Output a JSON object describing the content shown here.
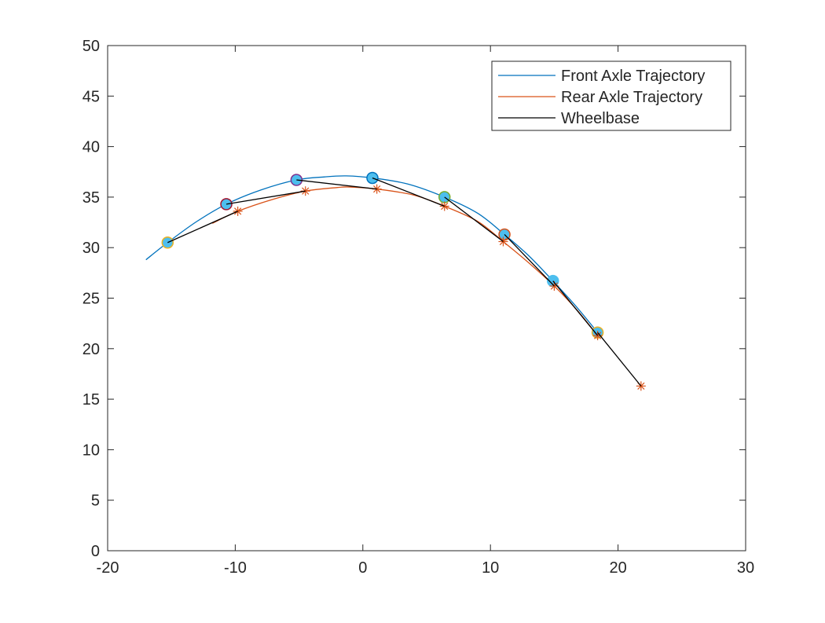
{
  "chart_data": {
    "type": "line",
    "title": "",
    "xlabel": "",
    "ylabel": "",
    "xlim": [
      -20,
      30
    ],
    "ylim": [
      0,
      50
    ],
    "xticks": [
      -20,
      -10,
      0,
      10,
      20,
      30
    ],
    "yticks": [
      0,
      5,
      10,
      15,
      20,
      25,
      30,
      35,
      40,
      45,
      50
    ],
    "grid": false,
    "legend_position": "top-right",
    "series": [
      {
        "name": "Front Axle Trajectory",
        "color": "#0072BD",
        "x": [
          -17,
          -15.3,
          -13,
          -10.7,
          -8,
          -5.2,
          -3,
          -1.3,
          0.75,
          3.5,
          6.4,
          9,
          11.1,
          13,
          14.9,
          16.7,
          18.4
        ],
        "y": [
          28.8,
          30.5,
          32.6,
          34.3,
          35.7,
          36.7,
          37.0,
          37.1,
          36.9,
          36.3,
          35.0,
          33.4,
          31.3,
          29.2,
          26.7,
          24.2,
          21.6
        ]
      },
      {
        "name": "Rear Axle Trajectory",
        "color": "#D95319",
        "x": [
          -11.8,
          -9.8,
          -7,
          -4.5,
          -2,
          -1,
          1.1,
          4,
          6.4,
          9,
          11.0,
          13,
          15.0,
          16.8,
          18.4
        ],
        "y": [
          32.4,
          33.6,
          34.8,
          35.6,
          35.95,
          36.0,
          35.8,
          35.2,
          34.1,
          32.6,
          30.6,
          28.5,
          26.2,
          23.8,
          21.3
        ]
      },
      {
        "name": "Wheelbase",
        "color": "#000000"
      }
    ],
    "front_markers": {
      "x": [
        -15.3,
        -10.7,
        -5.2,
        0.75,
        6.4,
        11.1,
        14.9,
        18.4
      ],
      "y": [
        30.5,
        34.3,
        36.7,
        36.9,
        35.0,
        31.3,
        26.7,
        21.6
      ],
      "fill": "#4DBEEE",
      "edge_colors": [
        "#EDB120",
        "#A2142F",
        "#7E2F8E",
        "#0072BD",
        "#77AC30",
        "#D95319",
        "#4DBEEE",
        "#EDB120"
      ]
    },
    "rear_markers": {
      "x": [
        -9.8,
        -4.5,
        1.1,
        6.4,
        11.0,
        15.0,
        18.4,
        21.8
      ],
      "y": [
        33.6,
        35.6,
        35.8,
        34.1,
        30.6,
        26.2,
        21.3,
        16.3
      ],
      "color": "#D95319"
    }
  }
}
